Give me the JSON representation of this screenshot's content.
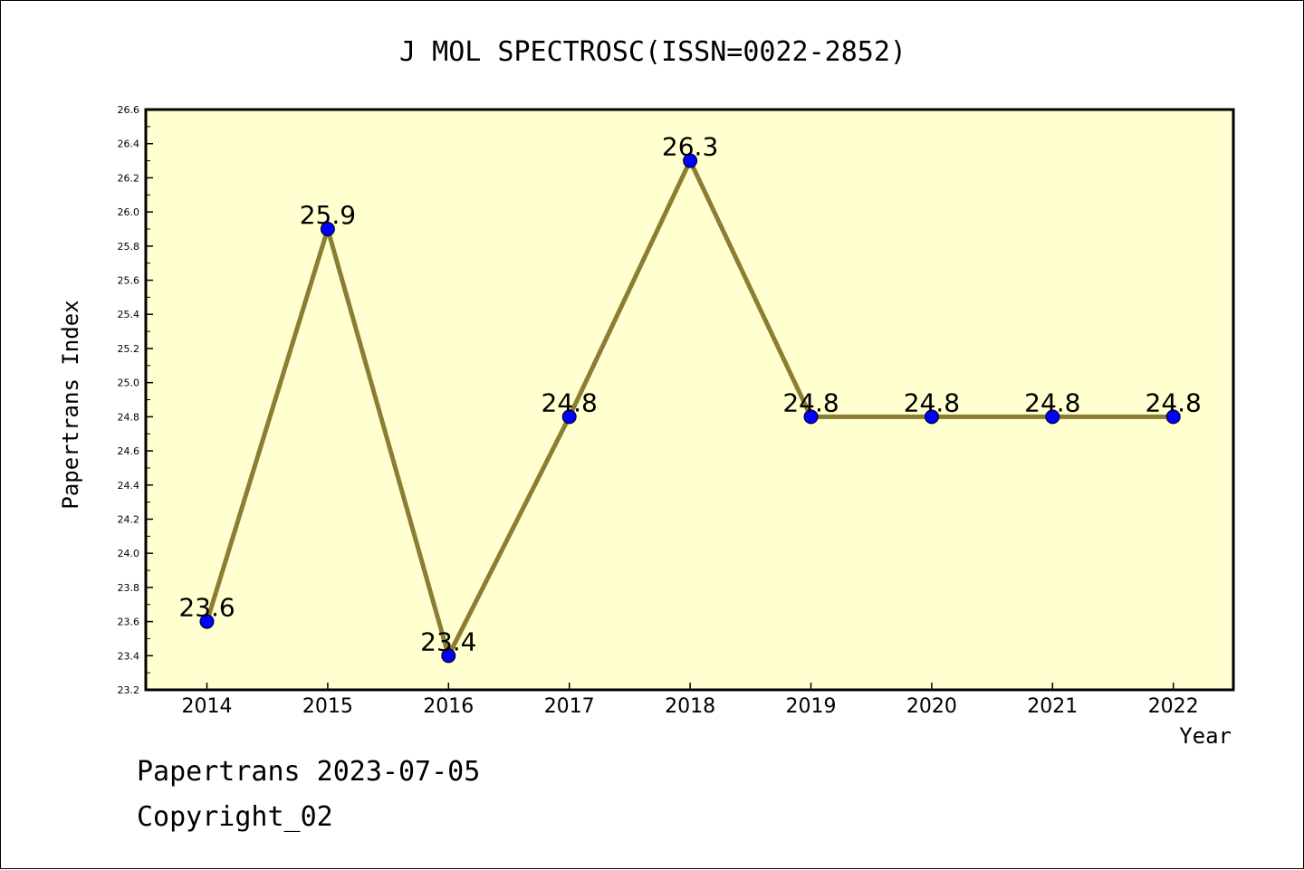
{
  "chart_data": {
    "type": "line",
    "title": "J MOL SPECTROSC(ISSN=0022-2852)",
    "xlabel": "Year",
    "ylabel": "Papertrans Index",
    "categories": [
      "2014",
      "2015",
      "2016",
      "2017",
      "2018",
      "2019",
      "2020",
      "2021",
      "2022"
    ],
    "series": [
      {
        "values": [
          23.6,
          25.9,
          23.4,
          24.8,
          26.3,
          24.8,
          24.8,
          24.8,
          24.8
        ],
        "data_labels": [
          "23.6",
          "25.9",
          "23.4",
          "24.8",
          "26.3",
          "24.8",
          "24.8",
          "24.8",
          "24.8"
        ]
      }
    ],
    "ylim": [
      23.2,
      26.6
    ],
    "yticks": [
      "23.2",
      "23.4",
      "23.6",
      "23.8",
      "24.0",
      "24.2",
      "24.4",
      "24.6",
      "24.8",
      "25.0",
      "25.2",
      "25.4",
      "25.6",
      "25.8",
      "26.0",
      "26.2",
      "26.4",
      "26.6"
    ],
    "grid": false,
    "colors": {
      "plot_background": "#ffffd0",
      "line": "#8b7d32",
      "marker": "#0000ff"
    }
  },
  "footer": {
    "date_line": "Papertrans 2023-07-05",
    "copyright_line": "Copyright_02"
  }
}
